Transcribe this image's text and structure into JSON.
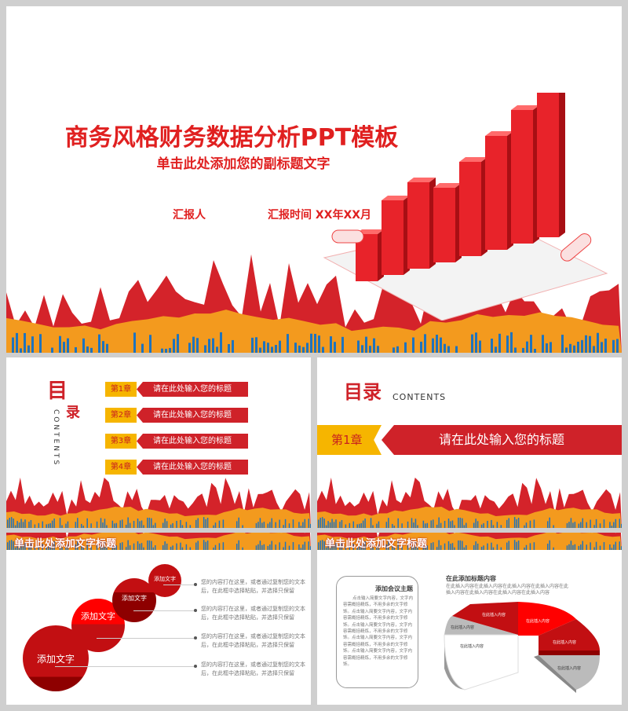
{
  "colors": {
    "red": "#e02020",
    "dark_red": "#c8201f",
    "orange": "#f39a1e",
    "blue": "#1e73be",
    "yellow": "#f6b500"
  },
  "slide1": {
    "title": "商务风格财务数据分析PPT模板",
    "subtitle": "单击此处添加您的副标题文字",
    "reporter": "汇报人",
    "report_time": "汇报时间 XX年XX月"
  },
  "slide2": {
    "mu": "目",
    "lu": "录",
    "contents": "CONTENTS",
    "chapters": [
      {
        "num": "第1章",
        "title": "请在此处输入您的标题"
      },
      {
        "num": "第2章",
        "title": "请在此处输入您的标题"
      },
      {
        "num": "第3章",
        "title": "请在此处输入您的标题"
      },
      {
        "num": "第4章",
        "title": "请在此处输入您的标题"
      }
    ]
  },
  "slide3": {
    "mulu": "目录",
    "contents": "CONTENTS",
    "chapter": "第1章",
    "title": "请在此处输入您的标题"
  },
  "slide4": {
    "header": "单击此处添加文字标题",
    "circles": [
      "添加文字",
      "添加文字",
      "添加文字",
      "添加文字"
    ],
    "desc": "您的内容打在这里，或者通过复制您的文本后，在此框中选择粘贴，并选择只保留"
  },
  "slide5": {
    "header": "单击此处添加文字标题",
    "box_title": "添加会议主题",
    "box_text": "点击输入简要文字内容，文字内容需概括精炼，不用多余的文字修饰。点击输入简要文字内容，文字内容需概括精炼，不用多余的文字修饰。点击输入简要文字内容，文字内容需概括精炼，不用多余的文字修饰。点击输入简要文字内容，文字内容需概括精炼，不用多余的文字修饰。点击输入简要文字内容，文字内容需概括精炼，不用多余的文字修饰。",
    "chart_title": "在此添加标题内容",
    "chart_sub": "在此插入内容在此插入内容在此插入内容在此插入内容在此插入内容在此插入内容在此插入内容在此插入内容",
    "slices": [
      "在此插入内容",
      "在此插入内容",
      "在此插入内容",
      "在此插入内容",
      "在此插入内容",
      "在此插入内容"
    ]
  }
}
